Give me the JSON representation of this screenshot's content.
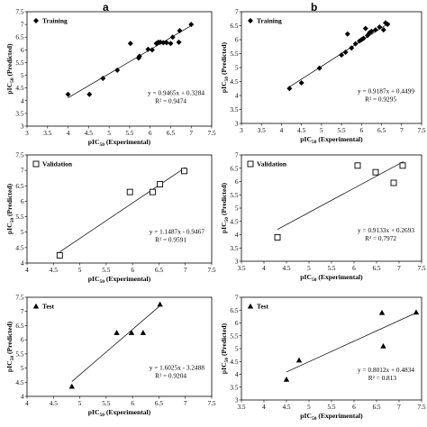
{
  "panel_labels": [
    "a",
    "b"
  ],
  "chart_data": [
    {
      "type": "scatter",
      "panel": "a",
      "legend": "Training",
      "marker": "diamond",
      "legend_position": "top-left",
      "xlim": [
        3,
        7.5
      ],
      "ylim": [
        3,
        7.5
      ],
      "xticks": [
        3,
        3.5,
        4,
        4.5,
        5,
        5.5,
        6,
        6.5,
        7,
        7.5
      ],
      "yticks": [
        3,
        3.5,
        4,
        4.5,
        5,
        5.5,
        6,
        6.5,
        7,
        7.5
      ],
      "xlabel": "pIC50 (Experimental)",
      "ylabel": "pIC50 (Predicted)",
      "points": [
        [
          4.0,
          4.25
        ],
        [
          4.52,
          4.25
        ],
        [
          4.85,
          4.88
        ],
        [
          5.2,
          5.2
        ],
        [
          5.52,
          6.25
        ],
        [
          5.72,
          5.68
        ],
        [
          5.74,
          5.75
        ],
        [
          5.95,
          6.02
        ],
        [
          6.05,
          6.0
        ],
        [
          6.15,
          6.25
        ],
        [
          6.2,
          6.3
        ],
        [
          6.25,
          6.3
        ],
        [
          6.32,
          6.28
        ],
        [
          6.4,
          6.28
        ],
        [
          6.5,
          6.25
        ],
        [
          6.55,
          6.5
        ],
        [
          6.7,
          6.3
        ],
        [
          6.72,
          6.75
        ],
        [
          7.0,
          7.0
        ]
      ],
      "equation": "y = 0.9465x + 0.3284",
      "r2": "R² = 0.9474",
      "fit": {
        "slope": 0.9465,
        "intercept": 0.3284,
        "x_range": [
          4.0,
          7.0
        ]
      }
    },
    {
      "type": "scatter",
      "panel": "b",
      "legend": "Training",
      "marker": "diamond",
      "legend_position": "top-left",
      "xlim": [
        3,
        7.5
      ],
      "ylim": [
        3,
        7
      ],
      "xticks": [
        3,
        3.5,
        4,
        4.5,
        5,
        5.5,
        6,
        6.5,
        7,
        7.5
      ],
      "yticks": [
        3,
        3.5,
        4,
        4.5,
        5,
        5.5,
        6,
        6.5,
        7
      ],
      "xlabel": "pIC50 (Experimental)",
      "ylabel": "pIC50 (Predicted)",
      "points": [
        [
          4.2,
          4.25
        ],
        [
          4.5,
          4.45
        ],
        [
          4.95,
          4.98
        ],
        [
          5.5,
          5.45
        ],
        [
          5.6,
          5.55
        ],
        [
          5.65,
          6.2
        ],
        [
          5.75,
          5.7
        ],
        [
          5.85,
          5.85
        ],
        [
          5.95,
          5.95
        ],
        [
          6.0,
          6.0
        ],
        [
          6.05,
          6.05
        ],
        [
          6.1,
          6.4
        ],
        [
          6.15,
          6.15
        ],
        [
          6.2,
          6.25
        ],
        [
          6.25,
          6.3
        ],
        [
          6.35,
          6.35
        ],
        [
          6.45,
          6.45
        ],
        [
          6.55,
          6.35
        ],
        [
          6.6,
          6.6
        ],
        [
          6.65,
          6.55
        ]
      ],
      "equation": "y = 0.9187x + 0.4499",
      "r2": "R² = 0.9295",
      "fit": {
        "slope": 0.9187,
        "intercept": 0.4499,
        "x_range": [
          4.2,
          6.7
        ]
      }
    },
    {
      "type": "scatter",
      "panel": "a",
      "legend": "Validation",
      "marker": "square",
      "legend_position": "top-left",
      "xlim": [
        4,
        7.5
      ],
      "ylim": [
        4,
        7.5
      ],
      "xticks": [
        4,
        4.5,
        5,
        5.5,
        6,
        6.5,
        7,
        7.5
      ],
      "yticks": [
        4,
        4.5,
        5,
        5.5,
        6,
        6.5,
        7,
        7.5
      ],
      "xlabel": "pIC50 (Experimental)",
      "ylabel": "pIC50 (Predicted)",
      "points": [
        [
          4.62,
          4.25
        ],
        [
          5.95,
          6.3
        ],
        [
          6.38,
          6.3
        ],
        [
          6.52,
          6.55
        ],
        [
          6.98,
          6.98
        ]
      ],
      "equation": "y = 1.1487x - 0.9467",
      "r2": "R² = 0.9591",
      "fit": {
        "slope": 1.1487,
        "intercept": -0.9467,
        "x_range": [
          4.62,
          7.0
        ]
      }
    },
    {
      "type": "scatter",
      "panel": "b",
      "legend": "Validation",
      "marker": "square",
      "legend_position": "top-left",
      "xlim": [
        3.5,
        7.5
      ],
      "ylim": [
        3,
        7
      ],
      "xticks": [
        3.5,
        4,
        4.5,
        5,
        5.5,
        6,
        6.5,
        7,
        7.5
      ],
      "yticks": [
        3,
        3.5,
        4,
        4.5,
        5,
        5.5,
        6,
        6.5,
        7
      ],
      "xlabel": "pIC50 (Experimental)",
      "ylabel": "pIC50 (Predicted)",
      "points": [
        [
          4.3,
          3.9
        ],
        [
          6.08,
          6.6
        ],
        [
          6.48,
          6.35
        ],
        [
          6.88,
          5.95
        ],
        [
          7.08,
          6.6
        ]
      ],
      "equation": "y = 0.9133x + 0.2693",
      "r2": "R² = 0.7972",
      "fit": {
        "slope": 0.9133,
        "intercept": 0.2693,
        "x_range": [
          4.3,
          7.1
        ]
      }
    },
    {
      "type": "scatter",
      "panel": "a",
      "legend": "Test",
      "marker": "triangle",
      "legend_position": "top-left",
      "xlim": [
        4,
        7.5
      ],
      "ylim": [
        4,
        7.5
      ],
      "xticks": [
        4,
        4.5,
        5,
        5.5,
        6,
        6.5,
        7,
        7.5
      ],
      "yticks": [
        4,
        4.5,
        5,
        5.5,
        6,
        6.5,
        7,
        7.5
      ],
      "xlabel": "pIC50 (Experimental)",
      "ylabel": "pIC50 (Predicted)",
      "points": [
        [
          4.85,
          4.35
        ],
        [
          5.7,
          6.25
        ],
        [
          5.98,
          6.25
        ],
        [
          6.2,
          6.25
        ],
        [
          6.52,
          7.25
        ]
      ],
      "equation": "y = 1.6025x - 3.2488",
      "r2": "R² = 0.9204",
      "fit": {
        "slope": 1.6025,
        "intercept": -3.2488,
        "x_range": [
          4.85,
          6.5
        ]
      }
    },
    {
      "type": "scatter",
      "panel": "b",
      "legend": "Test",
      "marker": "triangle",
      "legend_position": "top-left",
      "xlim": [
        3.5,
        7.5
      ],
      "ylim": [
        3,
        7
      ],
      "xticks": [
        3.5,
        4,
        4.5,
        5,
        5.5,
        6,
        6.5,
        7,
        7.5
      ],
      "yticks": [
        3,
        3.5,
        4,
        4.5,
        5,
        5.5,
        6,
        6.5,
        7
      ],
      "xlabel": "pIC50 (Experimental)",
      "ylabel": "pIC50 (Predicted)",
      "points": [
        [
          4.5,
          3.8
        ],
        [
          4.78,
          4.55
        ],
        [
          6.62,
          6.4
        ],
        [
          6.65,
          5.1
        ],
        [
          7.38,
          6.42
        ]
      ],
      "equation": "y = 0.8012x + 0.4834",
      "r2": "R² = 0.813",
      "fit": {
        "slope": 0.8012,
        "intercept": 0.4834,
        "x_range": [
          4.5,
          7.4
        ]
      }
    }
  ]
}
